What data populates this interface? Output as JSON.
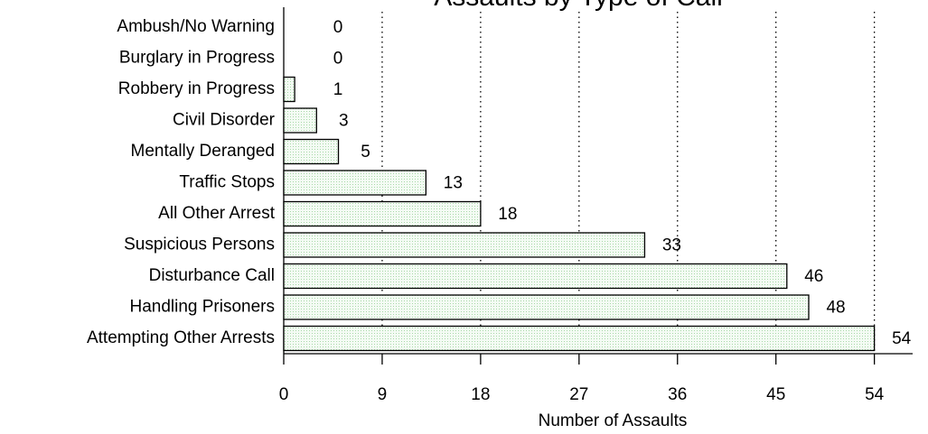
{
  "chart_data": {
    "type": "barh",
    "title": "Assaults by Type of Call",
    "x_label": "Number of Assaults",
    "categories": [
      "Ambush/No Warning",
      "Burglary in Progress",
      "Robbery in Progress",
      "Civil Disorder",
      "Mentally Deranged",
      "Traffic Stops",
      "All Other Arrest",
      "Suspicious Persons",
      "Disturbance Call",
      "Handling Prisoners",
      "Attempting Other Arrests"
    ],
    "values": [
      0,
      0,
      1,
      3,
      5,
      13,
      18,
      33,
      46,
      48,
      54
    ],
    "color": "#e6f4e6",
    "xlim": [
      0,
      57.5
    ],
    "xticks": [
      0,
      9,
      18,
      27,
      36,
      45,
      54
    ],
    "grid": true
  }
}
